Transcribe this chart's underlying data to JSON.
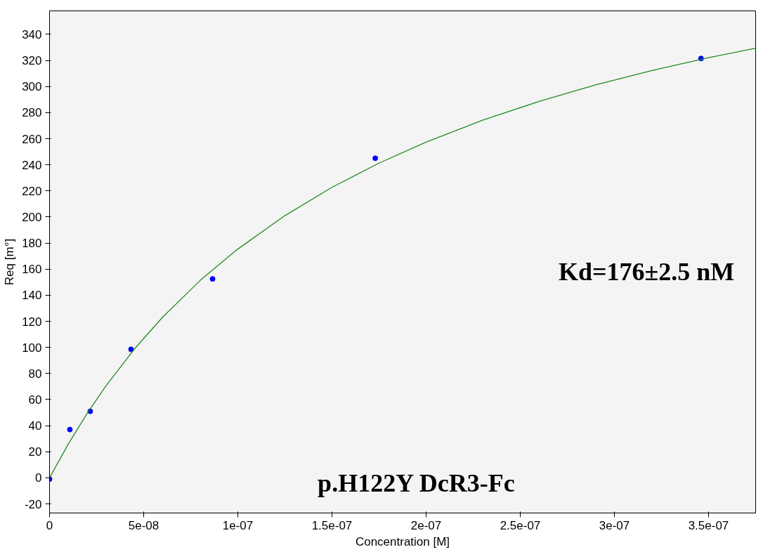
{
  "chart_data": {
    "type": "scatter",
    "xlabel": "Concentration [M]",
    "ylabel": "Req [m°]",
    "annotations": [
      "Kd=176±2.5 nM",
      "p.H122Y DcR3-Fc"
    ],
    "xlim": [
      0,
      3.75e-07
    ],
    "ylim": [
      -27,
      358
    ],
    "xticks": [
      0,
      {
        "value": 5e-08,
        "label": "5e-08"
      },
      {
        "value": 1e-07,
        "label": "1e-07"
      },
      {
        "value": 1.5e-07,
        "label": "1.5e-07"
      },
      {
        "value": 2e-07,
        "label": "2e-07"
      },
      {
        "value": 2.5e-07,
        "label": "2.5e-07"
      },
      {
        "value": 3e-07,
        "label": "3e-07"
      },
      {
        "value": 3.5e-07,
        "label": "3.5e-07"
      }
    ],
    "yticks": [
      -20,
      0,
      20,
      40,
      60,
      80,
      100,
      120,
      140,
      160,
      180,
      200,
      220,
      240,
      260,
      280,
      300,
      320,
      340
    ],
    "grid": false,
    "marker": "circle",
    "series": [
      {
        "color": "#0000ff",
        "x": [
          0,
          1.08e-08,
          2.16e-08,
          4.33e-08,
          8.66e-08,
          1.73e-07,
          3.46e-07
        ],
        "values": [
          -1,
          37,
          51,
          98.5,
          152.5,
          245,
          321.5
        ]
      },
      {
        "type": "line",
        "color": "#228b22",
        "marker": "none",
        "line_style": "solid",
        "x": [
          0,
          1e-08,
          2e-08,
          3e-08,
          4.5e-08,
          6e-08,
          8e-08,
          1e-07,
          1.25e-07,
          1.5e-07,
          1.75e-07,
          2e-07,
          2.3e-07,
          2.6e-07,
          2.9e-07,
          3.2e-07,
          3.5e-07,
          3.75e-07
        ],
        "values": [
          0,
          26.0,
          49.4,
          70.5,
          98.6,
          123.1,
          151.3,
          175.4,
          201.0,
          222.7,
          241.3,
          257.4,
          274.2,
          288.6,
          301.2,
          312.3,
          322.1,
          329.4
        ]
      }
    ]
  }
}
